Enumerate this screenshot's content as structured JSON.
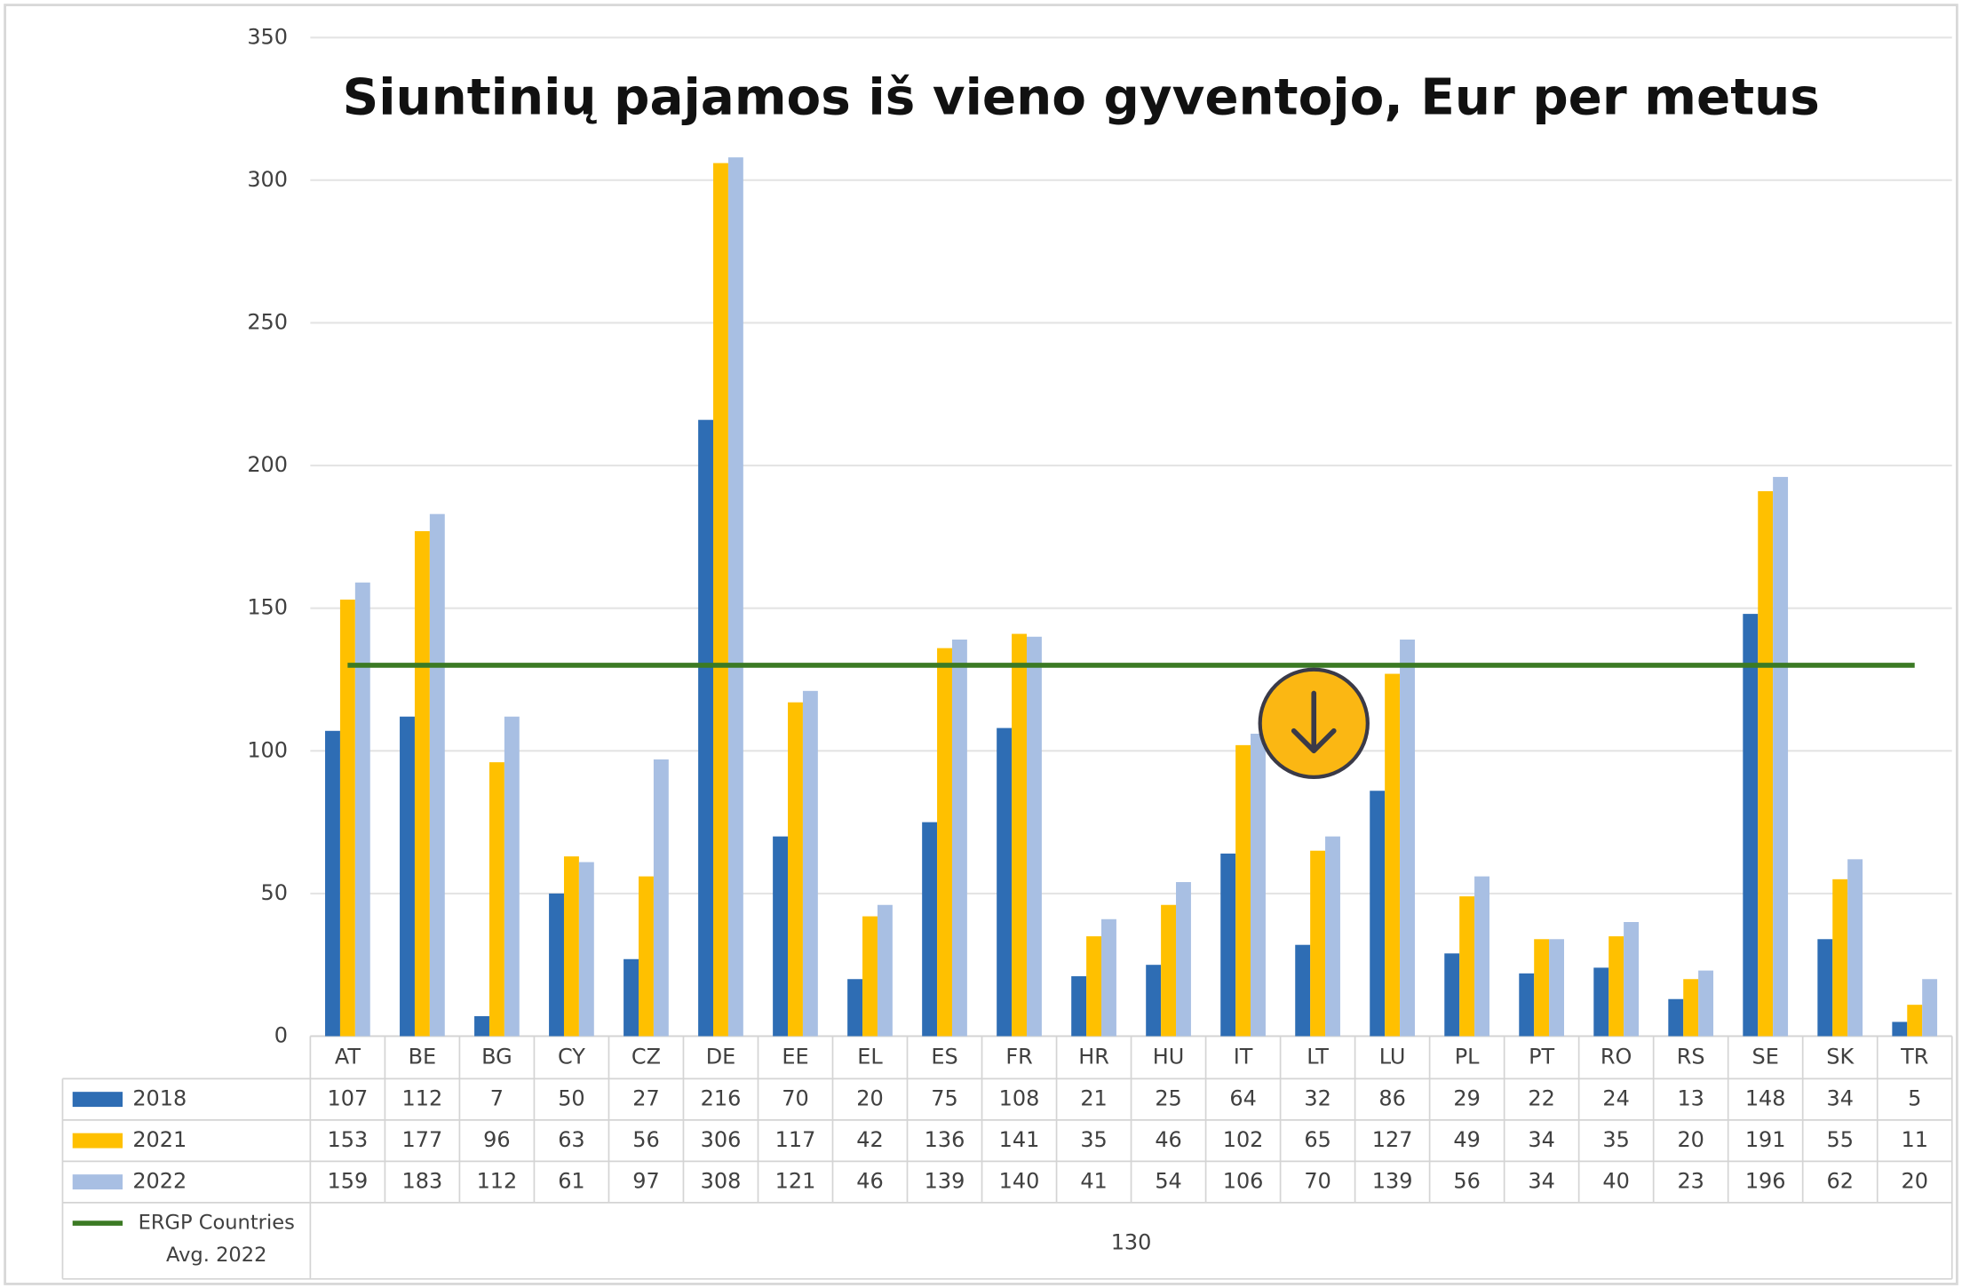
{
  "chart_data": {
    "type": "bar",
    "title": "Siuntinių pajamos iš vieno gyventojo, Eur per metus",
    "categories": [
      "AT",
      "BE",
      "BG",
      "CY",
      "CZ",
      "DE",
      "EE",
      "EL",
      "ES",
      "FR",
      "HR",
      "HU",
      "IT",
      "LT",
      "LU",
      "PL",
      "PT",
      "RO",
      "RS",
      "SE",
      "SK",
      "TR"
    ],
    "series": [
      {
        "name": "2018",
        "color": "#2e6db4",
        "values": [
          107,
          112,
          7,
          50,
          27,
          216,
          70,
          20,
          75,
          108,
          21,
          25,
          64,
          32,
          86,
          29,
          22,
          24,
          13,
          148,
          34,
          5
        ]
      },
      {
        "name": "2021",
        "color": "#ffc000",
        "values": [
          153,
          177,
          96,
          63,
          56,
          306,
          117,
          42,
          136,
          141,
          35,
          46,
          102,
          65,
          127,
          49,
          34,
          35,
          20,
          191,
          55,
          11
        ]
      },
      {
        "name": "2022",
        "color": "#a8bfe3",
        "values": [
          159,
          183,
          112,
          61,
          97,
          308,
          121,
          46,
          139,
          140,
          41,
          54,
          106,
          70,
          139,
          56,
          34,
          40,
          23,
          196,
          62,
          20
        ]
      }
    ],
    "reference_line": {
      "name": "ERGP Countries Avg. 2022",
      "color": "#3b7a24",
      "value": 130
    },
    "ylim": [
      0,
      350
    ],
    "yticks": [
      0,
      50,
      100,
      150,
      200,
      250,
      300,
      350
    ],
    "grid": true
  }
}
